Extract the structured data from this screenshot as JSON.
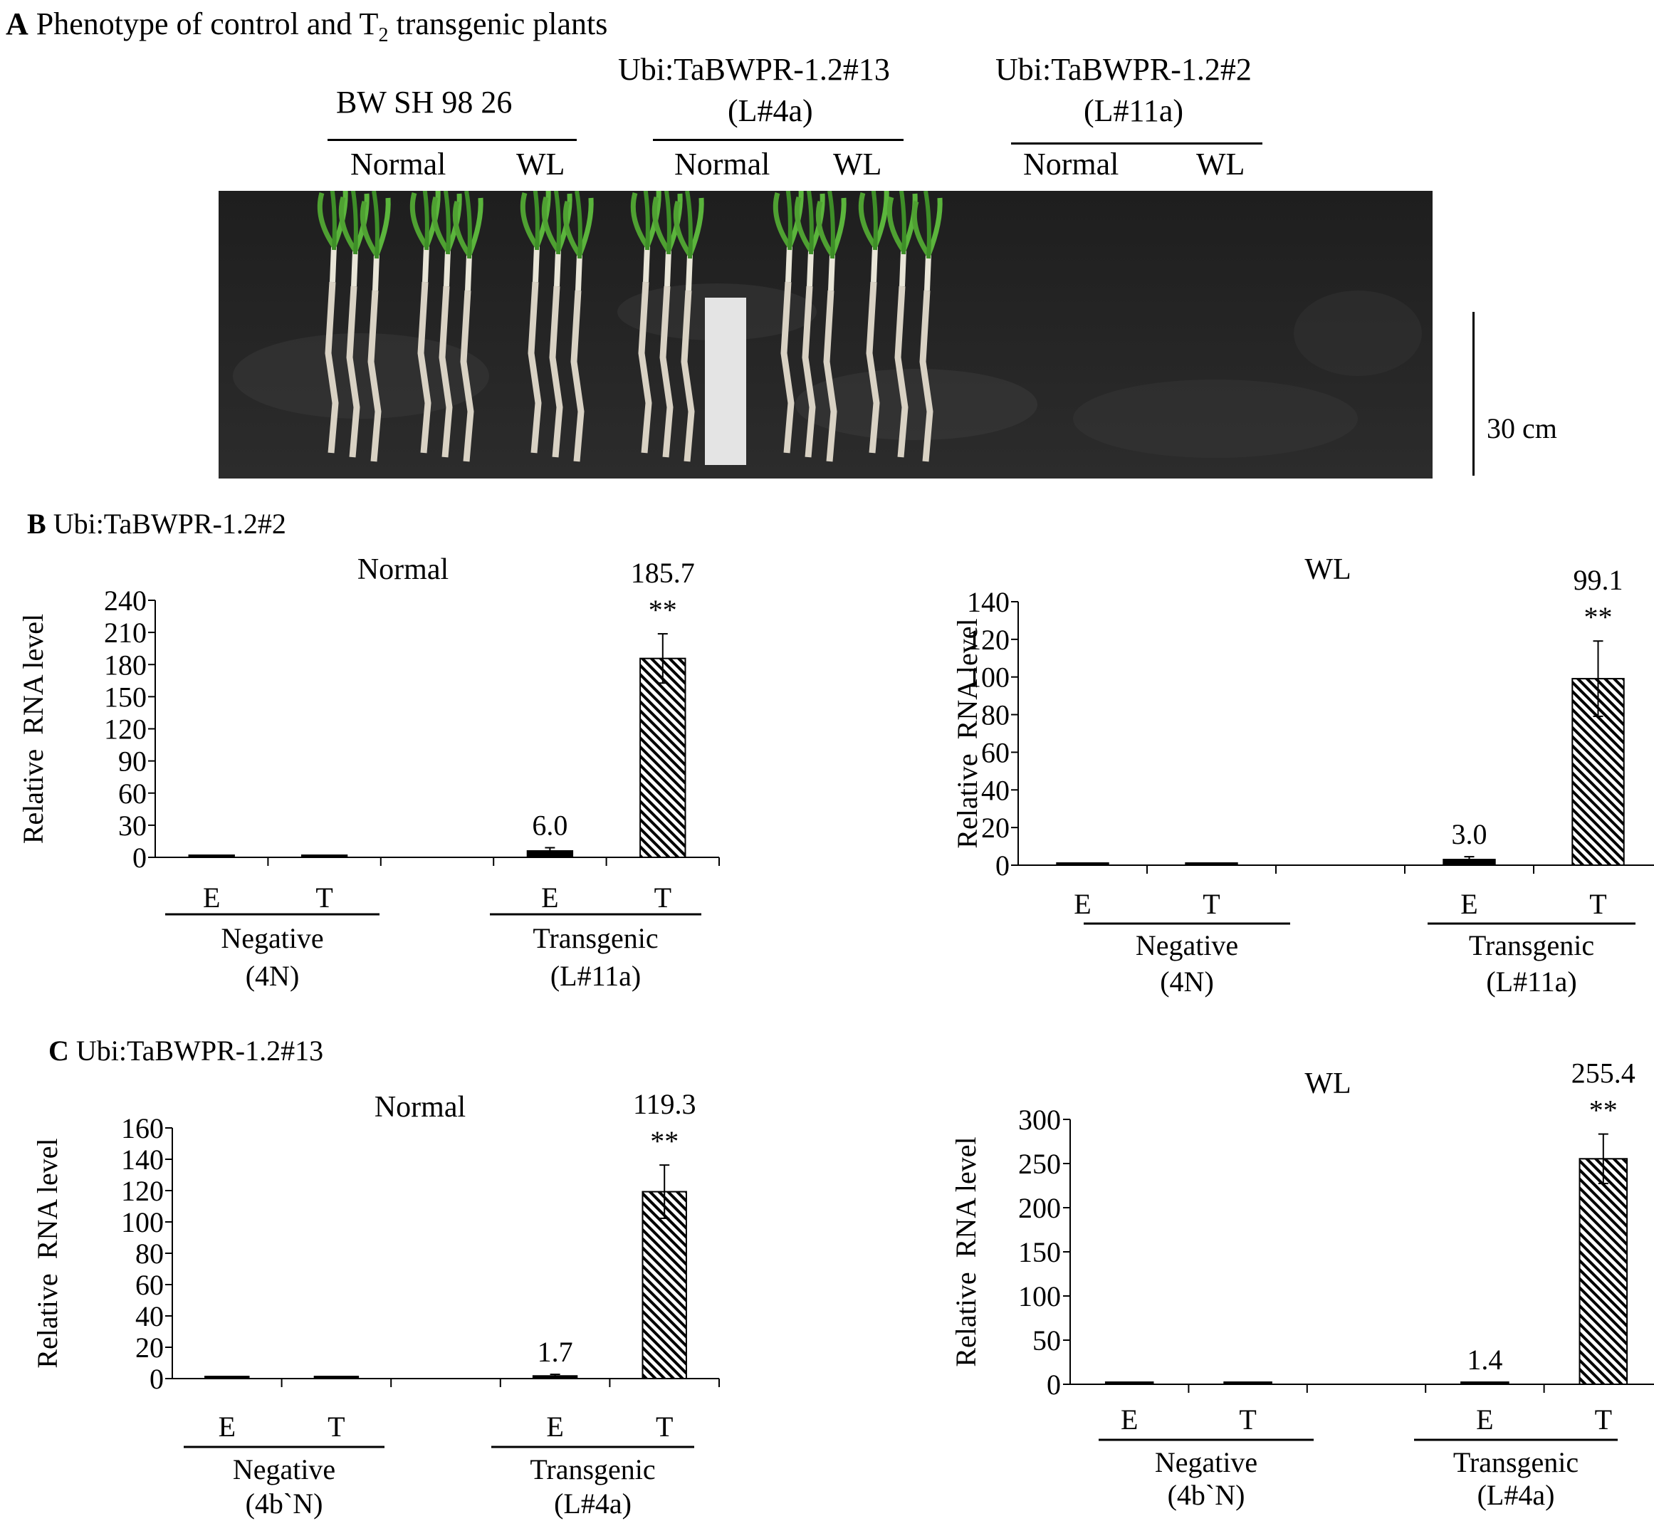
{
  "panel_a": {
    "letter": "A",
    "title_pre": "Phenotype of control and T",
    "title_sub": "2",
    "title_post": " transgenic plants",
    "groups": [
      {
        "name_line1": "BW SH 98 26",
        "name_line2": "",
        "cond_normal": "Normal",
        "cond_wl": "WL"
      },
      {
        "name_line1": "Ubi:TaBWPR-1.2#13",
        "name_line2": "(L#4a)",
        "cond_normal": "Normal",
        "cond_wl": "WL"
      },
      {
        "name_line1": "Ubi:TaBWPR-1.2#2",
        "name_line2": "(L#11a)",
        "cond_normal": "Normal",
        "cond_wl": "WL"
      }
    ],
    "scale_label": "30 cm"
  },
  "panel_b": {
    "letter": "B",
    "title": "Ubi:TaBWPR-1.2#2"
  },
  "panel_c": {
    "letter": "C",
    "title": "Ubi:TaBWPR-1.2#13"
  },
  "chart_data": [
    {
      "type": "bar",
      "title": "Normal",
      "ylabel": "Relative  RNA level",
      "ylim": [
        0,
        240
      ],
      "yticks": [
        0,
        30,
        60,
        90,
        120,
        150,
        180,
        210,
        240
      ],
      "categories": [
        "E",
        "T",
        "",
        "E",
        "T"
      ],
      "values": [
        1,
        1,
        null,
        6.0,
        185.7
      ],
      "error_bars": [
        null,
        null,
        null,
        3,
        23
      ],
      "fills": [
        "solid",
        "solid",
        "none",
        "solid",
        "hatched"
      ],
      "data_labels": [
        "",
        "",
        "",
        "6.0",
        "185.7"
      ],
      "significance": [
        "",
        "",
        "",
        "",
        "**"
      ],
      "groups": [
        {
          "line1": "Negative",
          "line2": "(4N)"
        },
        {
          "line1": "Transgenic",
          "line2": "(L#11a)"
        }
      ]
    },
    {
      "type": "bar",
      "title": "WL",
      "ylabel": "Relative  RNA level",
      "ylim": [
        0,
        140
      ],
      "yticks": [
        0,
        20,
        40,
        60,
        80,
        100,
        120,
        140
      ],
      "categories": [
        "E",
        "T",
        "",
        "E",
        "T"
      ],
      "values": [
        1,
        1,
        null,
        3.0,
        99.1
      ],
      "error_bars": [
        null,
        null,
        null,
        1.5,
        20
      ],
      "fills": [
        "solid",
        "solid",
        "none",
        "solid",
        "hatched"
      ],
      "data_labels": [
        "",
        "",
        "",
        "3.0",
        "99.1"
      ],
      "significance": [
        "",
        "",
        "",
        "",
        "**"
      ],
      "groups": [
        {
          "line1": "Negative",
          "line2": "(4N)"
        },
        {
          "line1": "Transgenic",
          "line2": "(L#11a)"
        }
      ]
    },
    {
      "type": "bar",
      "title": "Normal",
      "ylabel": "Relative  RNA level",
      "ylim": [
        0,
        160
      ],
      "yticks": [
        0,
        20,
        40,
        60,
        80,
        100,
        120,
        140,
        160
      ],
      "categories": [
        "E",
        "T",
        "",
        "E",
        "T"
      ],
      "values": [
        1,
        1,
        null,
        1.7,
        119.3
      ],
      "error_bars": [
        null,
        null,
        null,
        1,
        17
      ],
      "fills": [
        "solid",
        "solid",
        "none",
        "solid",
        "hatched"
      ],
      "data_labels": [
        "",
        "",
        "",
        "1.7",
        "119.3"
      ],
      "significance": [
        "",
        "",
        "",
        "",
        "**"
      ],
      "groups": [
        {
          "line1": "Negative",
          "line2": "(4b`N)"
        },
        {
          "line1": "Transgenic",
          "line2": "(L#4a)"
        }
      ]
    },
    {
      "type": "bar",
      "title": "WL",
      "ylabel": "Relative  RNA level",
      "ylim": [
        0,
        300
      ],
      "yticks": [
        0,
        50,
        100,
        150,
        200,
        250,
        300
      ],
      "categories": [
        "E",
        "T",
        "",
        "E",
        "T"
      ],
      "values": [
        1,
        1,
        null,
        1.4,
        255.4
      ],
      "error_bars": [
        null,
        null,
        null,
        1,
        28
      ],
      "fills": [
        "solid",
        "solid",
        "none",
        "solid",
        "hatched"
      ],
      "data_labels": [
        "",
        "",
        "",
        "1.4",
        "255.4"
      ],
      "significance": [
        "",
        "",
        "",
        "",
        "**"
      ],
      "groups": [
        {
          "line1": "Negative",
          "line2": "(4b`N)"
        },
        {
          "line1": "Transgenic",
          "line2": "(L#4a)"
        }
      ]
    }
  ]
}
